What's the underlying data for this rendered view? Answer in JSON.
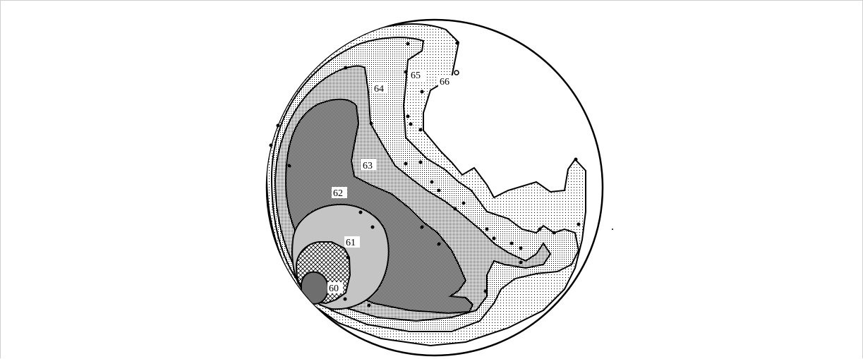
{
  "figure": {
    "type": "contour-map",
    "contour_labels": [
      {
        "id": "60",
        "text": "60"
      },
      {
        "id": "61",
        "text": "61"
      },
      {
        "id": "62",
        "text": "62"
      },
      {
        "id": "63",
        "text": "63"
      },
      {
        "id": "64",
        "text": "64"
      },
      {
        "id": "65",
        "text": "65"
      },
      {
        "id": "66",
        "text": "66"
      }
    ],
    "colors": {
      "outline": "#000000",
      "background": "#ffffff",
      "band_60": "#555555",
      "band_61": "#8a8a8a",
      "band_62": "#b0b0b0",
      "band_63": "#c8c8c8",
      "band_64": "#d6d6d6",
      "band_65": "#e6e6e6",
      "band_66": "#f4f4f4"
    }
  }
}
